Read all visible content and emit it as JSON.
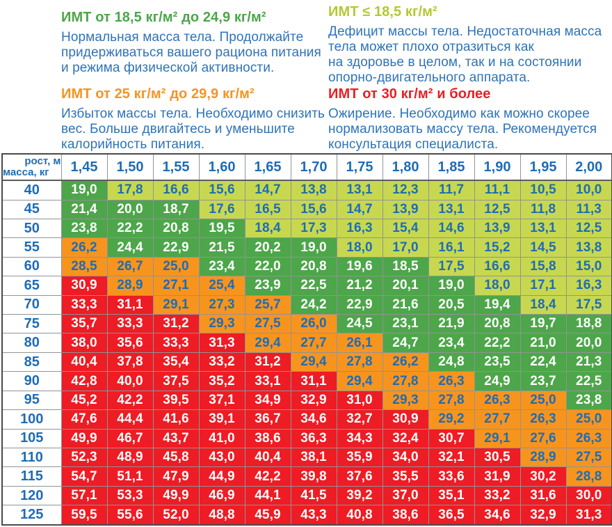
{
  "legend": {
    "blocks": [
      {
        "key": "normal",
        "heading": "ИМТ от 18,5 кг/м² до 24,9 кг/м²",
        "heading_color": "#4BA648",
        "body": "Нормальная масса тела. Продолжайте\nпридерживаться вашего рациона питания\nи режима физической активности."
      },
      {
        "key": "underweight",
        "heading": "ИМТ ≤ 18,5 кг/м²",
        "heading_color": "#B4C832",
        "body": "Дефицит массы тела. Недостаточная масса\nтела может плохо отразиться как\nна здоровье в целом, так и на состоянии\nопорно-двигательного аппарата."
      },
      {
        "key": "overweight",
        "heading": "ИМТ от 25 кг/м² до 29,9 кг/м²",
        "heading_color": "#F7941E",
        "body": "Избыток массы тела. Необходимо снизить\nвес. Больше двигайтесь и уменьшите\nкалорийность питания."
      },
      {
        "key": "obese",
        "heading": "ИМТ от 30 кг/м² и более",
        "heading_color": "#ED1C24",
        "body": "Ожирение. Необходимо как можно скорее\nнормализовать массу тела. Рекомендуется\nконсультация специалиста."
      }
    ]
  },
  "chart_data": {
    "type": "table",
    "corner_labels": {
      "top": "рост, м",
      "bottom": "масса, кг"
    },
    "heights_m": [
      "1,45",
      "1,50",
      "1,55",
      "1,60",
      "1,65",
      "1,70",
      "1,75",
      "1,80",
      "1,85",
      "1,90",
      "1,95",
      "2,00"
    ],
    "mass_kg": [
      "40",
      "45",
      "50",
      "55",
      "60",
      "65",
      "70",
      "75",
      "80",
      "85",
      "90",
      "95",
      "100",
      "105",
      "110",
      "115",
      "120",
      "125"
    ],
    "bmi_values": [
      [
        "19,0",
        "17,8",
        "16,6",
        "15,6",
        "14,7",
        "13,8",
        "13,1",
        "12,3",
        "11,7",
        "11,1",
        "10,5",
        "10,0"
      ],
      [
        "21,4",
        "20,0",
        "18,7",
        "17,6",
        "16,5",
        "15,6",
        "14,7",
        "13,9",
        "13,1",
        "12,5",
        "11,8",
        "11,3"
      ],
      [
        "23,8",
        "22,2",
        "20,8",
        "19,5",
        "18,4",
        "17,3",
        "16,3",
        "15,4",
        "14,6",
        "13,9",
        "13,1",
        "12,5"
      ],
      [
        "26,2",
        "24,4",
        "22,9",
        "21,5",
        "20,2",
        "19,0",
        "18,0",
        "17,0",
        "16,1",
        "15,2",
        "14,5",
        "13,8"
      ],
      [
        "28,5",
        "26,7",
        "25,0",
        "23,4",
        "22,0",
        "20,8",
        "19,6",
        "18,5",
        "17,5",
        "16,6",
        "15,8",
        "15,0"
      ],
      [
        "30,9",
        "28,9",
        "27,1",
        "25,4",
        "23,9",
        "22,5",
        "21,2",
        "20,1",
        "19,0",
        "18,0",
        "17,1",
        "16,3"
      ],
      [
        "33,3",
        "31,1",
        "29,1",
        "27,3",
        "25,7",
        "24,2",
        "22,9",
        "21,6",
        "20,5",
        "19,4",
        "18,4",
        "17,5"
      ],
      [
        "35,7",
        "33,3",
        "31,2",
        "29,3",
        "27,5",
        "26,0",
        "24,5",
        "23,1",
        "21,9",
        "20,8",
        "19,7",
        "18,8"
      ],
      [
        "38,0",
        "35,6",
        "33,3",
        "31,3",
        "29,4",
        "27,7",
        "26,1",
        "24,7",
        "23,4",
        "22,2",
        "21,0",
        "20,0"
      ],
      [
        "40,4",
        "37,8",
        "35,4",
        "33,2",
        "31,2",
        "29,4",
        "27,8",
        "26,2",
        "24,8",
        "23,5",
        "22,4",
        "21,3"
      ],
      [
        "42,8",
        "40,0",
        "37,5",
        "35,2",
        "33,1",
        "31,1",
        "29,4",
        "27,8",
        "26,3",
        "24,9",
        "23,7",
        "22,5"
      ],
      [
        "45,2",
        "42,2",
        "39,5",
        "37,1",
        "34,9",
        "32,9",
        "31,0",
        "29,3",
        "27,8",
        "26,3",
        "25,0",
        "23,8"
      ],
      [
        "47,6",
        "44,4",
        "41,6",
        "39,1",
        "36,7",
        "34,6",
        "32,7",
        "30,9",
        "29,2",
        "27,7",
        "26,3",
        "25,0"
      ],
      [
        "49,9",
        "46,7",
        "43,7",
        "41,0",
        "38,6",
        "36,3",
        "34,3",
        "32,4",
        "30,7",
        "29,1",
        "27,6",
        "26,3"
      ],
      [
        "52,3",
        "48,9",
        "45,8",
        "43,0",
        "40,4",
        "38,1",
        "35,9",
        "34,0",
        "32,1",
        "30,5",
        "28,9",
        "27,5"
      ],
      [
        "54,7",
        "51,1",
        "47,9",
        "44,9",
        "42,2",
        "39,8",
        "37,6",
        "35,5",
        "33,6",
        "31,9",
        "30,2",
        "28,8"
      ],
      [
        "57,1",
        "53,3",
        "49,9",
        "46,9",
        "44,1",
        "41,5",
        "39,2",
        "37,0",
        "35,1",
        "33,2",
        "31,6",
        "30,0"
      ],
      [
        "59,5",
        "55,6",
        "52,0",
        "48,8",
        "45,9",
        "43,3",
        "40,8",
        "38,6",
        "36,5",
        "34,6",
        "32,9",
        "31,3"
      ]
    ],
    "cell_categories": [
      [
        "n",
        "u",
        "u",
        "u",
        "u",
        "u",
        "u",
        "u",
        "u",
        "u",
        "u",
        "u"
      ],
      [
        "n",
        "n",
        "n",
        "u",
        "u",
        "u",
        "u",
        "u",
        "u",
        "u",
        "u",
        "u"
      ],
      [
        "n",
        "n",
        "n",
        "n",
        "u",
        "u",
        "u",
        "u",
        "u",
        "u",
        "u",
        "u"
      ],
      [
        "o",
        "n",
        "n",
        "n",
        "n",
        "n",
        "u",
        "u",
        "u",
        "u",
        "u",
        "u"
      ],
      [
        "o",
        "o",
        "o",
        "n",
        "n",
        "n",
        "n",
        "n",
        "u",
        "u",
        "u",
        "u"
      ],
      [
        "r",
        "o",
        "o",
        "o",
        "n",
        "n",
        "n",
        "n",
        "n",
        "u",
        "u",
        "u"
      ],
      [
        "r",
        "r",
        "o",
        "o",
        "o",
        "n",
        "n",
        "n",
        "n",
        "n",
        "u",
        "u"
      ],
      [
        "r",
        "r",
        "r",
        "o",
        "o",
        "o",
        "n",
        "n",
        "n",
        "n",
        "n",
        "n"
      ],
      [
        "r",
        "r",
        "r",
        "r",
        "o",
        "o",
        "o",
        "n",
        "n",
        "n",
        "n",
        "n"
      ],
      [
        "r",
        "r",
        "r",
        "r",
        "r",
        "o",
        "o",
        "o",
        "n",
        "n",
        "n",
        "n"
      ],
      [
        "r",
        "r",
        "r",
        "r",
        "r",
        "r",
        "o",
        "o",
        "o",
        "n",
        "n",
        "n"
      ],
      [
        "r",
        "r",
        "r",
        "r",
        "r",
        "r",
        "r",
        "o",
        "o",
        "o",
        "o",
        "n"
      ],
      [
        "r",
        "r",
        "r",
        "r",
        "r",
        "r",
        "r",
        "r",
        "o",
        "o",
        "o",
        "o"
      ],
      [
        "r",
        "r",
        "r",
        "r",
        "r",
        "r",
        "r",
        "r",
        "r",
        "o",
        "o",
        "o"
      ],
      [
        "r",
        "r",
        "r",
        "r",
        "r",
        "r",
        "r",
        "r",
        "r",
        "r",
        "o",
        "o"
      ],
      [
        "r",
        "r",
        "r",
        "r",
        "r",
        "r",
        "r",
        "r",
        "r",
        "r",
        "r",
        "o"
      ],
      [
        "r",
        "r",
        "r",
        "r",
        "r",
        "r",
        "r",
        "r",
        "r",
        "r",
        "r",
        "r"
      ],
      [
        "r",
        "r",
        "r",
        "r",
        "r",
        "r",
        "r",
        "r",
        "r",
        "r",
        "r",
        "r"
      ]
    ],
    "category_colors": {
      "u": "#C7D850",
      "n": "#4DA64A",
      "o": "#F7941E",
      "r": "#EE1C24"
    },
    "category_text_colors": {
      "u": "#1E6CB5",
      "n": "#FFFFFF",
      "o": "#1E6CB5",
      "r": "#FFFFFF"
    },
    "category_meaning": {
      "u": "underweight",
      "n": "normal",
      "o": "overweight",
      "r": "obese"
    }
  }
}
